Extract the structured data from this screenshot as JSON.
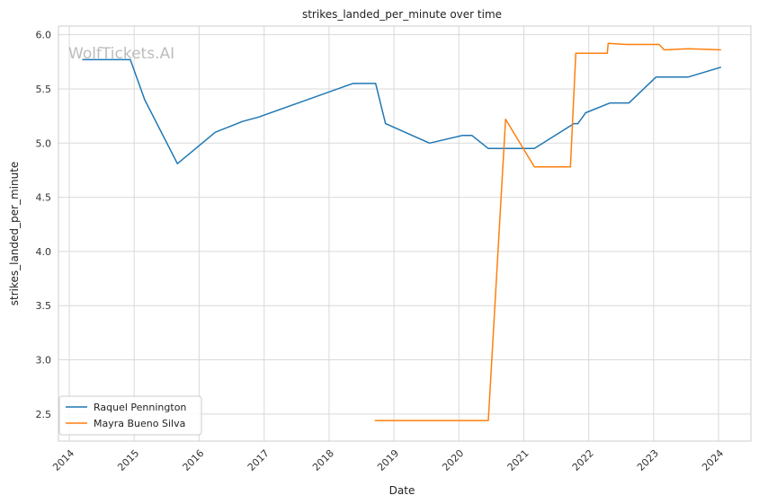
{
  "chart_data": {
    "type": "line",
    "title": "strikes_landed_per_minute over time",
    "xlabel": "Date",
    "ylabel": "strikes_landed_per_minute",
    "watermark": "WolfTickets.AI",
    "xlim": [
      "2013-11-01",
      "2024-07-01"
    ],
    "ylim": [
      2.25,
      6.08
    ],
    "x_ticks": [
      "2014",
      "2015",
      "2016",
      "2017",
      "2018",
      "2019",
      "2020",
      "2021",
      "2022",
      "2023",
      "2024"
    ],
    "y_ticks": [
      "2.5",
      "3.0",
      "3.5",
      "4.0",
      "4.5",
      "5.0",
      "5.5",
      "6.0"
    ],
    "grid": true,
    "legend_position": "lower-left",
    "colors": {
      "raquel": "#1f77b4",
      "mayra": "#ff7f0e"
    },
    "series": [
      {
        "name": "Raquel Pennington",
        "x": [
          "2014-03-15",
          "2014-12-10",
          "2015-03-01",
          "2015-09-01",
          "2016-04-01",
          "2016-09-01",
          "2016-12-01",
          "2018-05-15",
          "2018-09-20",
          "2018-11-15",
          "2019-07-20",
          "2020-01-20",
          "2020-03-15",
          "2020-06-15",
          "2021-03-01",
          "2021-10-10",
          "2021-11-01",
          "2021-12-15",
          "2022-05-01",
          "2022-08-15",
          "2023-01-15",
          "2023-07-15",
          "2024-01-15"
        ],
        "values": [
          5.77,
          5.77,
          5.4,
          4.81,
          5.1,
          5.2,
          5.24,
          5.55,
          5.55,
          5.18,
          5.0,
          5.07,
          5.07,
          4.95,
          4.95,
          5.18,
          5.18,
          5.28,
          5.37,
          5.37,
          5.61,
          5.61,
          5.7
        ]
      },
      {
        "name": "Mayra Bueno Silva",
        "x": [
          "2018-09-15",
          "2020-06-15",
          "2020-09-20",
          "2021-03-01",
          "2021-09-20",
          "2021-10-20",
          "2022-04-15",
          "2022-04-20",
          "2022-08-01",
          "2023-02-01",
          "2023-03-01",
          "2023-07-15",
          "2024-01-15"
        ],
        "values": [
          2.44,
          2.44,
          5.22,
          4.78,
          4.78,
          5.83,
          5.83,
          5.92,
          5.91,
          5.91,
          5.86,
          5.87,
          5.86
        ]
      }
    ]
  }
}
